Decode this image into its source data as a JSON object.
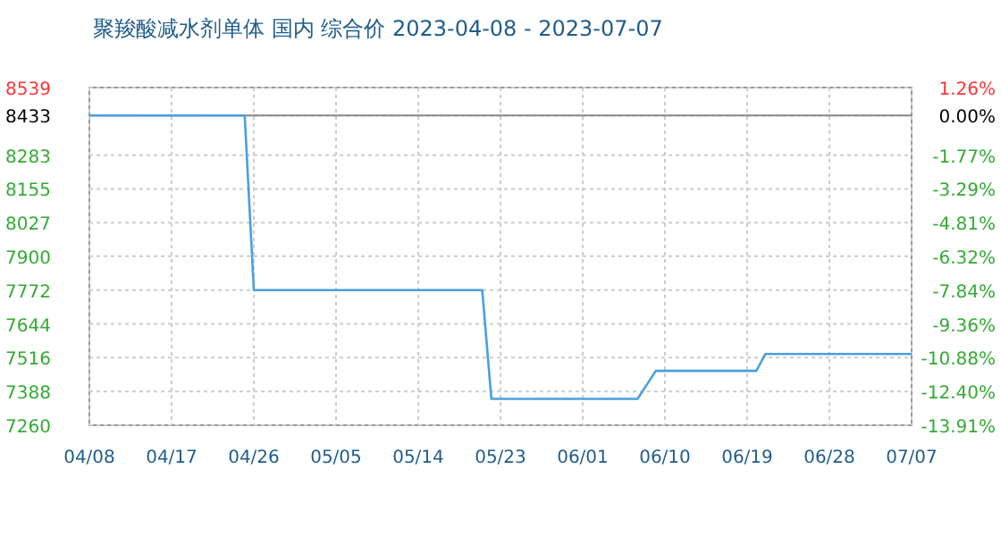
{
  "chart_data": {
    "type": "line",
    "title": "聚羧酸减水剂单体 国内 综合价 2023-04-08 - 2023-07-07",
    "x": [
      "2023-04-08",
      "2023-04-25",
      "2023-04-26",
      "2023-05-21",
      "2023-05-22",
      "2023-06-07",
      "2023-06-09",
      "2023-06-20",
      "2023-06-21",
      "2023-07-07"
    ],
    "series": [
      {
        "color": "#4a9fe0",
        "values": [
          8433,
          8433,
          7772,
          7772,
          7360,
          7360,
          7466,
          7466,
          7530,
          7530
        ]
      }
    ],
    "xlim": [
      "2023-04-08",
      "2023-07-07"
    ],
    "xticks": [
      {
        "value": "2023-04-08",
        "label": "04/08"
      },
      {
        "value": "2023-04-17",
        "label": "04/17"
      },
      {
        "value": "2023-04-26",
        "label": "04/26"
      },
      {
        "value": "2023-05-05",
        "label": "05/05"
      },
      {
        "value": "2023-05-14",
        "label": "05/14"
      },
      {
        "value": "2023-05-23",
        "label": "05/23"
      },
      {
        "value": "2023-06-01",
        "label": "06/01"
      },
      {
        "value": "2023-06-10",
        "label": "06/10"
      },
      {
        "value": "2023-06-19",
        "label": "06/19"
      },
      {
        "value": "2023-06-28",
        "label": "06/28"
      },
      {
        "value": "2023-07-07",
        "label": "07/07"
      }
    ],
    "ylim": [
      7260,
      8539
    ],
    "yticks": [
      7260,
      7388,
      7516,
      7644,
      7772,
      7900,
      8027,
      8155,
      8283,
      8433,
      8539
    ],
    "y2lim": [
      -13.91,
      1.26
    ],
    "y2ticks": [
      {
        "value": -13.91,
        "label": "-13.91%"
      },
      {
        "value": -12.4,
        "label": "-12.40%"
      },
      {
        "value": -10.88,
        "label": "-10.88%"
      },
      {
        "value": -9.36,
        "label": "-9.36%"
      },
      {
        "value": -7.84,
        "label": "-7.84%"
      },
      {
        "value": -6.32,
        "label": "-6.32%"
      },
      {
        "value": -4.81,
        "label": "-4.81%"
      },
      {
        "value": -3.29,
        "label": "-3.29%"
      },
      {
        "value": -1.77,
        "label": "-1.77%"
      },
      {
        "value": 0,
        "label": "0.00%"
      },
      {
        "value": 1.26,
        "label": "1.26%"
      }
    ],
    "ref_lines": [
      {
        "axis": "y",
        "value": 8433,
        "color": "#888888"
      }
    ],
    "grid": true,
    "marker": "none",
    "line_style": "solid"
  }
}
